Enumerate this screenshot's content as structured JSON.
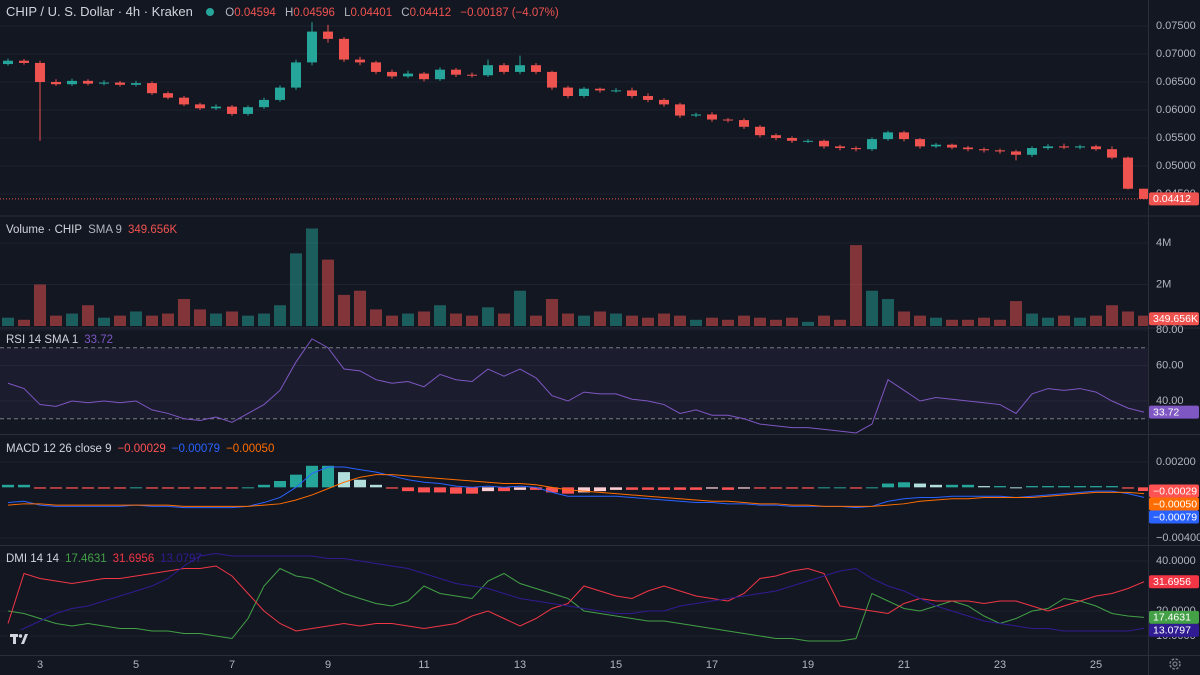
{
  "chart_data": [
    {
      "type": "candlestick",
      "title": "CHIP / U. S. Dollar · 4h · Kraken",
      "ohlc_keys": [
        "O",
        "H",
        "L",
        "C"
      ],
      "change": {
        "value": -0.00187,
        "label": "−0.00187"
      },
      "change_pct": {
        "value": -4.07,
        "label": "(−4.07%)"
      },
      "up_color": "#26a69a",
      "down_color": "#ef5350",
      "categories": [
        null,
        null,
        "3",
        null,
        null,
        null,
        null,
        null,
        "5",
        null,
        null,
        null,
        null,
        null,
        "7",
        null,
        null,
        null,
        null,
        null,
        "9",
        null,
        null,
        null,
        null,
        null,
        "11",
        null,
        null,
        null,
        null,
        null,
        "13",
        null,
        null,
        null,
        null,
        null,
        "15",
        null,
        null,
        null,
        null,
        null,
        "17",
        null,
        null,
        null,
        null,
        null,
        "19",
        null,
        null,
        null,
        null,
        null,
        "21",
        null,
        null,
        null,
        null,
        null,
        "23",
        null,
        null,
        null,
        null,
        null,
        "25",
        null,
        null,
        null
      ],
      "open": [
        0.0682,
        0.0688,
        0.0684,
        0.065,
        0.0646,
        0.0652,
        0.0647,
        0.0649,
        0.0645,
        0.0648,
        0.063,
        0.0622,
        0.061,
        0.0603,
        0.0606,
        0.0593,
        0.0605,
        0.0618,
        0.064,
        0.0685,
        0.074,
        0.0727,
        0.069,
        0.0685,
        0.0668,
        0.066,
        0.0665,
        0.0655,
        0.0672,
        0.0663,
        0.0662,
        0.068,
        0.0668,
        0.068,
        0.0668,
        0.064,
        0.0625,
        0.0638,
        0.0635,
        0.0635,
        0.0625,
        0.0618,
        0.061,
        0.059,
        0.0592,
        0.0583,
        0.0582,
        0.057,
        0.0555,
        0.055,
        0.0545,
        0.0545,
        0.0535,
        0.0532,
        0.053,
        0.0548,
        0.056,
        0.0548,
        0.0535,
        0.0538,
        0.0533,
        0.053,
        0.0528,
        0.0526,
        0.052,
        0.0532,
        0.0535,
        0.0533,
        0.0535,
        0.053,
        0.0515,
        0.04594
      ],
      "high": [
        0.0692,
        0.0691,
        0.0688,
        0.0655,
        0.0656,
        0.0655,
        0.0653,
        0.0652,
        0.0652,
        0.0651,
        0.0633,
        0.0625,
        0.0613,
        0.061,
        0.0609,
        0.0608,
        0.0622,
        0.0644,
        0.069,
        0.0757,
        0.0752,
        0.073,
        0.0695,
        0.0688,
        0.0672,
        0.067,
        0.0668,
        0.0676,
        0.0675,
        0.0667,
        0.069,
        0.0684,
        0.0697,
        0.0684,
        0.067,
        0.0643,
        0.0641,
        0.064,
        0.0639,
        0.064,
        0.063,
        0.0621,
        0.0613,
        0.0595,
        0.0596,
        0.0586,
        0.0585,
        0.0573,
        0.0558,
        0.0553,
        0.0548,
        0.0547,
        0.0538,
        0.0535,
        0.0551,
        0.0563,
        0.0563,
        0.055,
        0.0541,
        0.054,
        0.0536,
        0.0533,
        0.0531,
        0.0529,
        0.0535,
        0.0539,
        0.054,
        0.0538,
        0.0538,
        0.0535,
        0.0517,
        0.04596
      ],
      "low": [
        0.0679,
        0.0681,
        0.0545,
        0.0643,
        0.0643,
        0.0644,
        0.0644,
        0.0642,
        0.0642,
        0.0627,
        0.0619,
        0.0607,
        0.06,
        0.06,
        0.059,
        0.059,
        0.0602,
        0.0615,
        0.0636,
        0.068,
        0.072,
        0.0686,
        0.068,
        0.0664,
        0.0656,
        0.0657,
        0.0651,
        0.0652,
        0.0659,
        0.0658,
        0.0659,
        0.0664,
        0.0664,
        0.0664,
        0.0636,
        0.0621,
        0.0622,
        0.0631,
        0.0631,
        0.0621,
        0.0614,
        0.0606,
        0.0586,
        0.0587,
        0.0579,
        0.0578,
        0.0566,
        0.0551,
        0.0546,
        0.0541,
        0.0541,
        0.0531,
        0.0528,
        0.0526,
        0.0527,
        0.0545,
        0.0544,
        0.0531,
        0.0532,
        0.053,
        0.0526,
        0.0524,
        0.0522,
        0.051,
        0.0516,
        0.0529,
        0.053,
        0.053,
        0.0527,
        0.0512,
        0.0458,
        0.04401
      ],
      "close": [
        0.0688,
        0.0684,
        0.065,
        0.0646,
        0.0652,
        0.0647,
        0.0649,
        0.0645,
        0.0648,
        0.063,
        0.0622,
        0.061,
        0.0603,
        0.0606,
        0.0593,
        0.0605,
        0.0618,
        0.064,
        0.0685,
        0.074,
        0.0727,
        0.069,
        0.0685,
        0.0668,
        0.066,
        0.0665,
        0.0655,
        0.0672,
        0.0663,
        0.0662,
        0.068,
        0.0668,
        0.068,
        0.0668,
        0.064,
        0.0625,
        0.0638,
        0.0635,
        0.0635,
        0.0625,
        0.0618,
        0.061,
        0.059,
        0.0592,
        0.0583,
        0.0582,
        0.057,
        0.0555,
        0.055,
        0.0545,
        0.0545,
        0.0535,
        0.0532,
        0.053,
        0.0548,
        0.056,
        0.0548,
        0.0535,
        0.0538,
        0.0533,
        0.053,
        0.0528,
        0.0526,
        0.052,
        0.0532,
        0.0535,
        0.0533,
        0.0535,
        0.053,
        0.0515,
        0.04594,
        0.04412
      ],
      "ylim": [
        0.04125,
        0.07964
      ],
      "yticks": [
        {
          "value": 0.045,
          "label": "0.04500"
        },
        {
          "value": 0.05,
          "label": "0.05000"
        },
        {
          "value": 0.055,
          "label": "0.05500"
        },
        {
          "value": 0.06,
          "label": "0.06000"
        },
        {
          "value": 0.065,
          "label": "0.06500"
        },
        {
          "value": 0.07,
          "label": "0.07000"
        },
        {
          "value": 0.075,
          "label": "0.07500"
        }
      ],
      "grid": true
    },
    {
      "type": "bar",
      "title": "Volume · CHIP",
      "sma_title": "SMA 9",
      "sma": {
        "value": 349656,
        "label": "349.656K"
      },
      "sma_color": "#ef5350",
      "up_color": "#26a69a",
      "down_color": "#ef5350",
      "values": [
        400000,
        300000,
        2000000,
        500000,
        600000,
        1000000,
        400000,
        500000,
        700000,
        500000,
        600000,
        1300000,
        800000,
        600000,
        700000,
        500000,
        600000,
        1000000,
        3500000,
        4700000,
        3200000,
        1500000,
        1700000,
        800000,
        500000,
        600000,
        700000,
        1000000,
        600000,
        500000,
        900000,
        600000,
        1700000,
        500000,
        1300000,
        600000,
        500000,
        700000,
        600000,
        500000,
        400000,
        600000,
        500000,
        300000,
        400000,
        300000,
        500000,
        400000,
        300000,
        400000,
        200000,
        500000,
        300000,
        3900000,
        1700000,
        1300000,
        700000,
        500000,
        400000,
        300000,
        300000,
        400000,
        300000,
        1200000,
        600000,
        400000,
        500000,
        400000,
        500000,
        1000000,
        700000,
        500000
      ],
      "ylim": [
        0,
        5253000
      ],
      "yticks": [
        {
          "value": 2000000,
          "label": "2M"
        },
        {
          "value": 4000000,
          "label": "4M"
        }
      ],
      "grid": true
    },
    {
      "type": "line",
      "title": "RSI 14 SMA 1",
      "bands": [
        30,
        70
      ],
      "band_color": "#7e57c2",
      "series": [
        {
          "color": "#7e57c2",
          "values": [
            50,
            47,
            38,
            37,
            40,
            39,
            40,
            39,
            40,
            35,
            33,
            30,
            29,
            31,
            28,
            33,
            38,
            46,
            62,
            75,
            70,
            58,
            57,
            52,
            50,
            51,
            48,
            55,
            52,
            51,
            58,
            54,
            58,
            53,
            43,
            40,
            45,
            44,
            44,
            41,
            40,
            38,
            33,
            35,
            32,
            32,
            30,
            27,
            26,
            25,
            25,
            24,
            23,
            22,
            27,
            52,
            46,
            40,
            42,
            41,
            40,
            39,
            38,
            33,
            44,
            47,
            46,
            47,
            45,
            40,
            36,
            33.72
          ]
        }
      ],
      "ylim": [
        21.41,
        80.56
      ],
      "yticks": [
        {
          "value": 40,
          "label": "40.00"
        },
        {
          "value": 60,
          "label": "60.00"
        },
        {
          "value": 80,
          "label": "80.00"
        }
      ],
      "grid": true
    },
    {
      "type": "combo",
      "title": "MACD 12 26 close 9",
      "series": [
        {
          "kind": "histogram",
          "colors": [
            "#26a69a",
            "#b2dfdb",
            "#ff5252",
            "#ffcdd2"
          ],
          "color": "#ff5252",
          "last_label": "−0.00029",
          "values": [
            0.0002,
            0.0002,
            -0.0001,
            -0.0001,
            -0.0001,
            -0.0001,
            -0.0001,
            -0.0001,
            0.0,
            -0.0001,
            -0.0001,
            -0.0001,
            -0.0001,
            -0.0001,
            -0.0001,
            0.0,
            0.0002,
            0.0005,
            0.001,
            0.0017,
            0.0017,
            0.0012,
            0.0006,
            0.0002,
            -0.0001,
            -0.0003,
            -0.0004,
            -0.0004,
            -0.0005,
            -0.0005,
            -0.0003,
            -0.0003,
            -0.0002,
            -0.0002,
            -0.0004,
            -0.0005,
            -0.0004,
            -0.0003,
            -0.0002,
            -0.0002,
            -0.0002,
            -0.0002,
            -0.0002,
            -0.0002,
            -0.0001,
            -0.0002,
            -0.0001,
            -0.0001,
            -0.0001,
            -0.0001,
            -0.0001,
            0.0,
            0.0,
            -0.0001,
            0.0,
            0.0003,
            0.0004,
            0.0003,
            0.0002,
            0.0002,
            0.0002,
            0.0001,
            0.0001,
            0.0,
            0.0001,
            0.0001,
            0.0001,
            0.0001,
            0.0001,
            0.0001,
            -0.0001,
            -0.00029
          ]
        },
        {
          "kind": "line",
          "color": "#2962ff",
          "last_label": "−0.00079",
          "values": [
            -0.0012,
            -0.0011,
            -0.0014,
            -0.0015,
            -0.0015,
            -0.0015,
            -0.0015,
            -0.0015,
            -0.0014,
            -0.0015,
            -0.0015,
            -0.0016,
            -0.0016,
            -0.0016,
            -0.0016,
            -0.0015,
            -0.0012,
            -0.0008,
            0.0,
            0.0011,
            0.0016,
            0.0016,
            0.0014,
            0.0012,
            0.0009,
            0.0006,
            0.0004,
            0.0003,
            0.0001,
            0.0,
            0.0001,
            0.0,
            0.0001,
            0.0,
            -0.0004,
            -0.0007,
            -0.0007,
            -0.0007,
            -0.0007,
            -0.0008,
            -0.0009,
            -0.001,
            -0.0011,
            -0.0012,
            -0.0012,
            -0.0013,
            -0.0013,
            -0.0014,
            -0.0014,
            -0.0015,
            -0.0015,
            -0.0015,
            -0.0015,
            -0.0016,
            -0.0015,
            -0.0011,
            -0.0009,
            -0.0008,
            -0.0008,
            -0.0007,
            -0.0007,
            -0.0007,
            -0.0007,
            -0.0008,
            -0.0007,
            -0.0006,
            -0.0005,
            -0.0004,
            -0.0003,
            -0.0003,
            -0.0005,
            -0.00079
          ]
        },
        {
          "kind": "line",
          "color": "#ff6d00",
          "last_label": "−0.00050",
          "values": [
            -0.0014,
            -0.0013,
            -0.0013,
            -0.0014,
            -0.0014,
            -0.0014,
            -0.0014,
            -0.0014,
            -0.0014,
            -0.0014,
            -0.0014,
            -0.0015,
            -0.0015,
            -0.0015,
            -0.0015,
            -0.0015,
            -0.0014,
            -0.0013,
            -0.001,
            -0.0006,
            -0.0001,
            0.0004,
            0.0008,
            0.001,
            0.001,
            0.0009,
            0.0008,
            0.0007,
            0.0006,
            0.0005,
            0.0004,
            0.0003,
            0.0003,
            0.0002,
            0.0,
            -0.0002,
            -0.0003,
            -0.0004,
            -0.0005,
            -0.0006,
            -0.0007,
            -0.0008,
            -0.0009,
            -0.001,
            -0.0011,
            -0.0011,
            -0.0012,
            -0.0013,
            -0.0013,
            -0.0014,
            -0.0014,
            -0.0015,
            -0.0015,
            -0.0015,
            -0.0015,
            -0.0014,
            -0.0013,
            -0.0011,
            -0.001,
            -0.0009,
            -0.0009,
            -0.0008,
            -0.0008,
            -0.0008,
            -0.0008,
            -0.0007,
            -0.0006,
            -0.0005,
            -0.0004,
            -0.0004,
            -0.0004,
            -0.0005
          ]
        }
      ],
      "ylim": [
        -0.00455,
        0.00413
      ],
      "yticks": [
        {
          "value": -0.004,
          "label": "−0.00400"
        },
        {
          "value": 0.002,
          "label": "0.00200"
        }
      ],
      "grid": true
    },
    {
      "type": "line",
      "title": "DMI 14 14",
      "series": [
        {
          "color": "#43a047",
          "values": [
            20,
            19,
            17,
            15,
            14,
            15,
            14,
            13,
            13,
            12,
            12,
            11,
            11,
            10,
            9,
            17,
            30,
            37,
            34,
            33,
            30,
            27,
            25,
            23,
            22,
            24,
            30,
            27,
            26,
            25,
            32,
            35,
            31,
            29,
            27,
            25,
            20,
            19,
            18,
            17,
            16,
            16,
            15,
            14,
            13,
            12,
            11,
            10,
            9,
            9,
            8,
            8,
            8,
            9,
            27,
            24,
            21,
            20,
            22,
            24,
            22,
            18,
            15,
            17,
            20,
            21,
            25,
            24,
            22,
            19,
            18,
            17.4631
          ]
        },
        {
          "color": "#f23645",
          "values": [
            15,
            35,
            33,
            32,
            31,
            32,
            33,
            33,
            34,
            35,
            36,
            37,
            37,
            38,
            34,
            27,
            20,
            15,
            12,
            13,
            14,
            15,
            14,
            15,
            15,
            14,
            13,
            14,
            15,
            18,
            20,
            17,
            14,
            17,
            21,
            23,
            30,
            28,
            26,
            25,
            28,
            30,
            28,
            26,
            25,
            24,
            27,
            33,
            34,
            36,
            37,
            35,
            22,
            21,
            20,
            19,
            23,
            25,
            24,
            24,
            24,
            23,
            24,
            24,
            22,
            20,
            22,
            24,
            26,
            27,
            29,
            31.6956
          ]
        },
        {
          "color": "#311b92",
          "values": [
            10,
            13,
            16,
            19,
            21,
            22,
            24,
            26,
            28,
            30,
            33,
            38,
            42,
            43,
            42,
            42,
            42,
            42,
            42,
            42,
            41,
            41,
            40,
            39,
            38,
            37,
            35,
            33,
            31,
            30,
            29,
            27,
            25,
            24,
            23,
            22,
            21,
            20,
            19,
            19,
            20,
            20,
            22,
            23,
            24,
            25,
            26,
            27,
            28,
            30,
            32,
            34,
            36,
            37,
            33,
            30,
            28,
            25,
            22,
            20,
            18,
            16,
            15,
            14,
            13,
            13,
            12,
            12,
            12,
            12,
            12,
            13.0797
          ]
        }
      ],
      "ylim": [
        2.4,
        46
      ],
      "yticks": [
        {
          "value": 10,
          "label": "10.0000"
        },
        {
          "value": 20,
          "label": "20.0000"
        },
        {
          "value": 40,
          "label": "40.0000"
        }
      ],
      "grid": true
    }
  ]
}
